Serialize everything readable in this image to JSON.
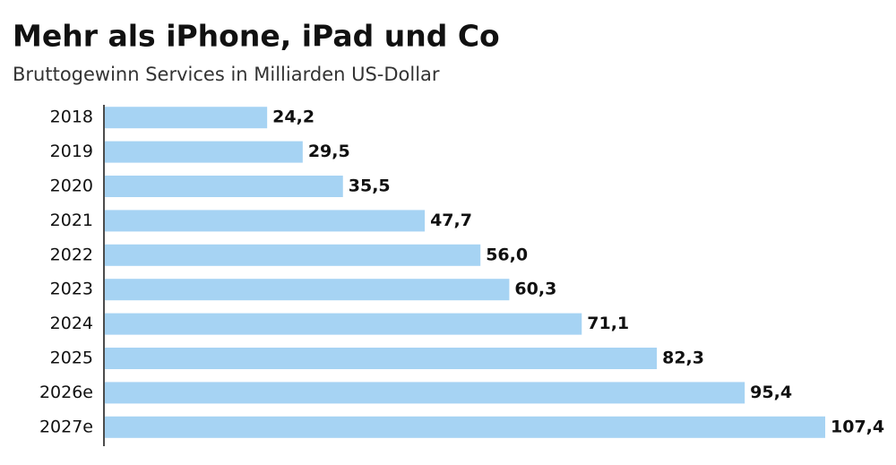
{
  "chart_data": {
    "type": "hbar",
    "title": "Mehr als iPhone, iPad und Co",
    "subtitle": "Bruttogewinn Services in Milliarden US-Dollar",
    "categories": [
      "2018",
      "2019",
      "2020",
      "2021",
      "2022",
      "2023",
      "2024",
      "2025",
      "2026e",
      "2027e"
    ],
    "values": [
      24.2,
      29.5,
      35.5,
      47.7,
      56.0,
      60.3,
      71.1,
      82.3,
      95.4,
      107.4
    ],
    "value_labels": [
      "24,2",
      "29,5",
      "35,5",
      "47,7",
      "56,0",
      "60,3",
      "71,1",
      "82,3",
      "95,4",
      "107,4"
    ],
    "color": "#a6d3f3"
  }
}
